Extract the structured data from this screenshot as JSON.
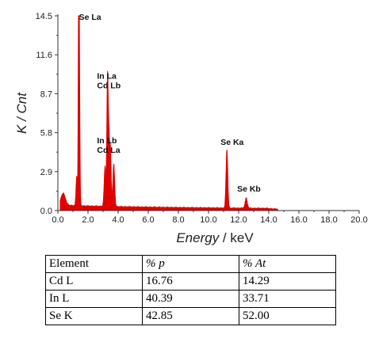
{
  "chart_data": {
    "type": "line",
    "title": "",
    "xlabel": "Energy",
    "xlabel_unit": " / keV",
    "ylabel": "K / Cnt",
    "xlim": [
      0,
      20
    ],
    "ylim": [
      0,
      14.5
    ],
    "x_ticks": [
      "0.0",
      "2.0",
      "4.0",
      "6.0",
      "8.0",
      "10.0",
      "12.0",
      "14.0",
      "16.0",
      "18.0",
      "20.0"
    ],
    "x_tick_values": [
      0,
      2,
      4,
      6,
      8,
      10,
      12,
      14,
      16,
      18,
      20
    ],
    "y_ticks": [
      "0.0",
      "2.9",
      "5.8",
      "8.7",
      "11.6",
      "14.5"
    ],
    "y_tick_values": [
      0,
      2.9,
      5.8,
      8.7,
      11.6,
      14.5
    ],
    "line_color": "#e00000",
    "baseline": 0.3,
    "peaks": [
      {
        "x": 0.35,
        "h": 0.9,
        "w": 0.15
      },
      {
        "x": 1.25,
        "h": 2.2,
        "w": 0.05
      },
      {
        "x": 1.38,
        "h": 14.1,
        "w": 0.03
      },
      {
        "x": 1.42,
        "h": 11.0,
        "w": 0.04
      },
      {
        "x": 3.13,
        "h": 3.0,
        "w": 0.06
      },
      {
        "x": 3.29,
        "h": 8.9,
        "w": 0.045
      },
      {
        "x": 3.38,
        "h": 5.0,
        "w": 0.05
      },
      {
        "x": 3.49,
        "h": 4.1,
        "w": 0.05
      },
      {
        "x": 3.71,
        "h": 3.2,
        "w": 0.06
      },
      {
        "x": 11.22,
        "h": 4.4,
        "w": 0.06
      },
      {
        "x": 12.5,
        "h": 0.8,
        "w": 0.07
      }
    ],
    "annotations": [
      {
        "text": "Se La",
        "x": 1.4,
        "y": 14.2
      },
      {
        "text": "In La",
        "x": 2.6,
        "y": 9.8
      },
      {
        "text": "Cd Lb",
        "x": 2.6,
        "y": 9.1
      },
      {
        "text": "In Lb",
        "x": 2.6,
        "y": 5.0
      },
      {
        "text": "Cd La",
        "x": 2.6,
        "y": 4.3
      },
      {
        "text": "Se Ka",
        "x": 10.8,
        "y": 4.9
      },
      {
        "text": "Se Kb",
        "x": 11.9,
        "y": 1.4
      }
    ]
  },
  "table": {
    "headers": [
      "Element",
      "% p",
      "% At"
    ],
    "rows": [
      [
        "Cd L",
        "16.76",
        "14.29"
      ],
      [
        "In L",
        "40.39",
        "33.71"
      ],
      [
        "Se K",
        "42.85",
        "52.00"
      ]
    ]
  }
}
